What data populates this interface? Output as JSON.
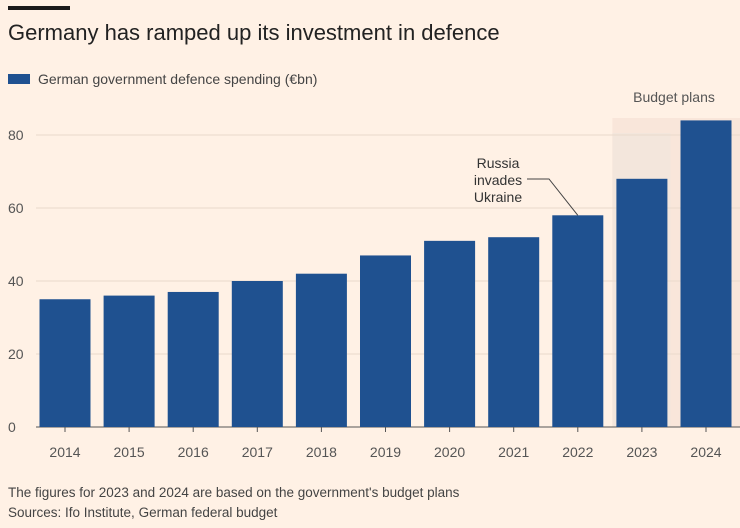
{
  "chart_data": {
    "type": "bar",
    "title": "Germany has ramped up its investment in defence",
    "categories": [
      "2014",
      "2015",
      "2016",
      "2017",
      "2018",
      "2019",
      "2020",
      "2021",
      "2022",
      "2023",
      "2024"
    ],
    "series": [
      {
        "name": "German government defence spending (€bn)",
        "values": [
          35,
          36,
          37,
          40,
          42,
          47,
          51,
          52,
          58,
          68,
          84
        ]
      }
    ],
    "ylim": [
      0,
      85
    ],
    "yticks": [
      0,
      20,
      40,
      60,
      80
    ],
    "grid": true,
    "legend": "top-left",
    "colors": {
      "bar": "#1f5190",
      "background": "#fff1e5",
      "shade": "#f9e6da"
    },
    "shaded_region": {
      "from": "2023",
      "to": "2024",
      "label": "Budget plans"
    },
    "annotations": [
      {
        "text": [
          "Russia",
          "invades",
          "Ukraine"
        ],
        "target": "2022"
      }
    ]
  },
  "footer": {
    "note": "The figures for 2023 and 2024 are based on the government's budget plans",
    "sources": "Sources: Ifo Institute, German federal budget"
  }
}
